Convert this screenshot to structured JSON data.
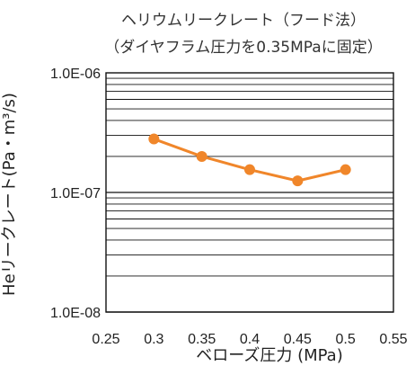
{
  "chart_data": {
    "type": "line",
    "title": "ヘリウムリークレート（フード法）",
    "subtitle": "（ダイヤフラム圧力を0.35MPaに固定）",
    "xlabel": "ベローズ圧力 (MPa)",
    "ylabel": "Heリークレート(Pa・m³/s)",
    "x_ticks": [
      "0.25",
      "0.3",
      "0.35",
      "0.4",
      "0.45",
      "0.5",
      "0.55"
    ],
    "y_ticks": [
      "1.0E-06",
      "1.0E-07",
      "1.0E-08"
    ],
    "xlim": [
      0.25,
      0.55
    ],
    "ylim": [
      1e-08,
      1e-06
    ],
    "y_scale": "log",
    "grid": true,
    "series": [
      {
        "x": [
          0.3,
          0.35,
          0.4,
          0.45,
          0.5
        ],
        "y": [
          2.8e-07,
          2e-07,
          1.55e-07,
          1.25e-07,
          1.55e-07
        ],
        "color": "#f0862a"
      }
    ]
  }
}
